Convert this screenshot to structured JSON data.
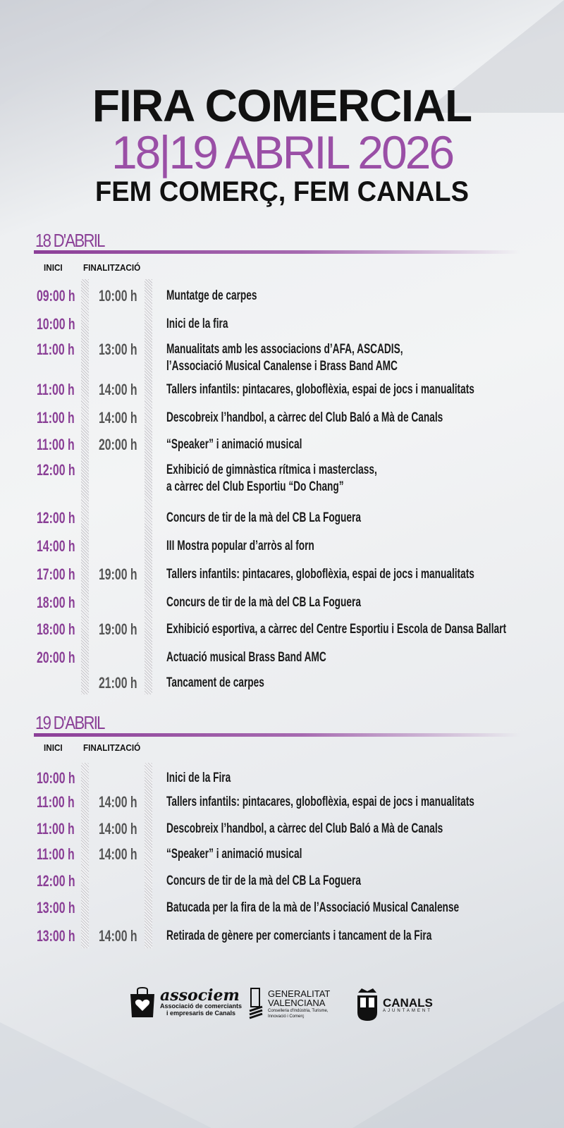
{
  "header": {
    "title": "FIRA COMERCIAL",
    "dates": "18|19 ABRIL 2026",
    "slogan": "FEM COMERÇ, FEM CANALS"
  },
  "columns": {
    "start": "INICI",
    "end": "FINALITZACIÓ"
  },
  "colors": {
    "accent": "#8a3f96",
    "text": "#1a1a1a"
  },
  "days": [
    {
      "label": "18 D'ABRIL",
      "events": [
        {
          "start": "09:00 h",
          "end": "10:00 h",
          "desc": [
            "Muntatge de carpes"
          ]
        },
        {
          "start": "10:00 h",
          "end": "",
          "desc": [
            "Inici de la fira"
          ]
        },
        {
          "start": "11:00 h",
          "end": "13:00 h",
          "desc": [
            "Manualitats amb les associacions d’AFA, ASCADIS,",
            "l’Associació Musical Canalense i Brass Band AMC"
          ]
        },
        {
          "start": "11:00 h",
          "end": "14:00 h",
          "desc": [
            "Tallers infantils: pintacares, globoflèxia, espai de jocs i manualitats"
          ]
        },
        {
          "start": "11:00 h",
          "end": "14:00 h",
          "desc": [
            "Descobreix l’handbol, a càrrec del Club Baló a Mà de Canals"
          ]
        },
        {
          "start": "11:00 h",
          "end": "20:00 h",
          "desc": [
            "“Speaker” i animació musical"
          ]
        },
        {
          "start": "12:00 h",
          "end": "",
          "desc": [
            "Exhibició de gimnàstica rítmica i masterclass,",
            "a càrrec del Club Esportiu “Do Chang”"
          ]
        },
        {
          "start": "12:00 h",
          "end": "",
          "desc": [
            "Concurs de tir de la mà del CB La Foguera"
          ]
        },
        {
          "start": "14:00 h",
          "end": "",
          "desc": [
            "III Mostra popular d’arròs al forn"
          ]
        },
        {
          "start": "17:00 h",
          "end": "19:00 h",
          "desc": [
            "Tallers infantils: pintacares, globoflèxia, espai de jocs i manualitats"
          ]
        },
        {
          "start": "18:00 h",
          "end": "",
          "desc": [
            "Concurs de tir de la mà del CB La Foguera"
          ]
        },
        {
          "start": "18:00 h",
          "end": "19:00 h",
          "desc": [
            "Exhibició esportiva, a càrrec del Centre Esportiu i Escola de Dansa Ballart"
          ]
        },
        {
          "start": "20:00 h",
          "end": "",
          "desc": [
            "Actuació musical Brass Band AMC"
          ]
        },
        {
          "start": "",
          "end": "21:00 h",
          "desc": [
            "Tancament de carpes"
          ]
        }
      ]
    },
    {
      "label": "19 D'ABRIL",
      "events": [
        {
          "start": "10:00 h",
          "end": "",
          "desc": [
            "Inici de la Fira"
          ]
        },
        {
          "start": "11:00 h",
          "end": "14:00 h",
          "desc": [
            "Tallers infantils: pintacares, globoflèxia, espai de jocs i manualitats"
          ]
        },
        {
          "start": "11:00 h",
          "end": "14:00 h",
          "desc": [
            "Descobreix l’handbol, a càrrec del Club Baló a Mà de Canals"
          ]
        },
        {
          "start": "11:00 h",
          "end": "14:00 h",
          "desc": [
            "“Speaker” i animació musical"
          ]
        },
        {
          "start": "12:00 h",
          "end": "",
          "desc": [
            "Concurs de tir de la mà del CB La Foguera"
          ]
        },
        {
          "start": "13:00 h",
          "end": "",
          "desc": [
            "Batucada per la fira de la mà de l’Associació Musical Canalense"
          ]
        },
        {
          "start": "13:00 h",
          "end": "14:00 h",
          "desc": [
            "Retirada de gènere per comerciants i tancament de la Fira"
          ]
        }
      ]
    }
  ],
  "logos": {
    "associem": {
      "name": "associem",
      "sub1": "Associació de comerciants",
      "sub2": "i empresaris de Canals"
    },
    "generalitat": {
      "name1": "GENERALITAT",
      "name2": "VALENCIANA",
      "sub1": "Conselleria d'Indústria, Turisme,",
      "sub2": "Innovació i Comerç"
    },
    "canals": {
      "name": "CANALS",
      "sub": "AJUNTAMENT"
    }
  }
}
